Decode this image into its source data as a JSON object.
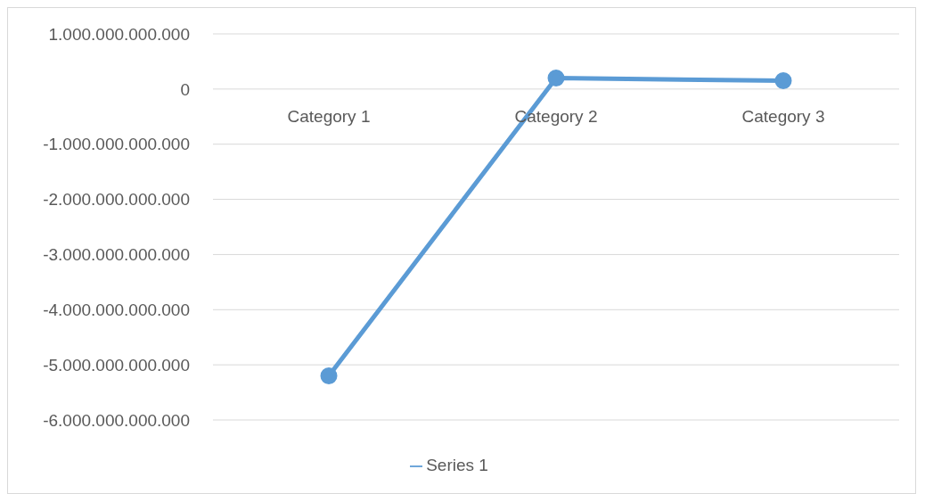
{
  "chart_data": {
    "type": "line",
    "categories": [
      "Category 1",
      "Category 2",
      "Category 3"
    ],
    "series": [
      {
        "name": "Series 1",
        "color": "#5b9bd5",
        "values": [
          -5200000000000,
          200000000000,
          150000000000
        ]
      }
    ],
    "ylim": [
      -6000000000000,
      1000000000000
    ],
    "yticks": [
      {
        "value": 1000000000000,
        "label": "1.000.000.000.000"
      },
      0,
      {
        "value": -1000000000000,
        "label": "-1.000.000.000.000"
      },
      {
        "value": -2000000000000,
        "label": "-2.000.000.000.000"
      },
      {
        "value": -3000000000000,
        "label": "-3.000.000.000.000"
      },
      {
        "value": -4000000000000,
        "label": "-4.000.000.000.000"
      },
      {
        "value": -5000000000000,
        "label": "-5.000.000.000.000"
      },
      {
        "value": -6000000000000,
        "label": "-6.000.000.000.000"
      }
    ],
    "grid": "y",
    "legend": "bottom",
    "marker": "circle",
    "line_style": "solid"
  }
}
